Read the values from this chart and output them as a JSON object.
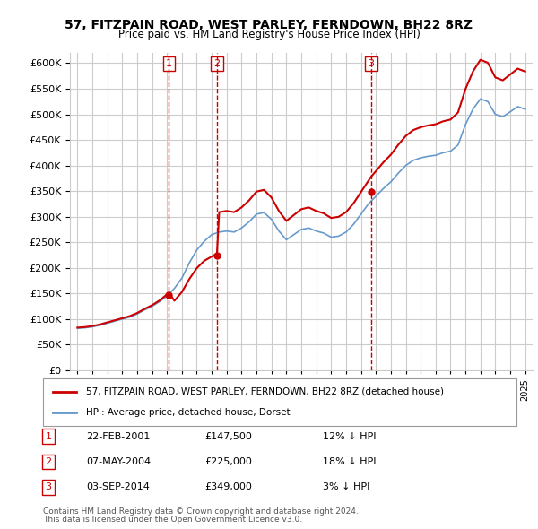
{
  "title": "57, FITZPAIN ROAD, WEST PARLEY, FERNDOWN, BH22 8RZ",
  "subtitle": "Price paid vs. HM Land Registry's House Price Index (HPI)",
  "legend_property": "57, FITZPAIN ROAD, WEST PARLEY, FERNDOWN, BH22 8RZ (detached house)",
  "legend_hpi": "HPI: Average price, detached house, Dorset",
  "footer1": "Contains HM Land Registry data © Crown copyright and database right 2024.",
  "footer2": "This data is licensed under the Open Government Licence v3.0.",
  "transactions": [
    {
      "num": 1,
      "date": "22-FEB-2001",
      "price": "£147,500",
      "diff": "12% ↓ HPI"
    },
    {
      "num": 2,
      "date": "07-MAY-2004",
      "price": "£225,000",
      "diff": "18% ↓ HPI"
    },
    {
      "num": 3,
      "date": "03-SEP-2014",
      "price": "£349,000",
      "diff": "3% ↓ HPI"
    }
  ],
  "property_color": "#cc0000",
  "hpi_color": "#6699cc",
  "marker_years": [
    2001.13,
    2004.35,
    2014.67
  ],
  "marker_values": [
    147500,
    225000,
    349000
  ],
  "ylim": [
    0,
    620000
  ],
  "yticks": [
    0,
    50000,
    100000,
    150000,
    200000,
    250000,
    300000,
    350000,
    400000,
    450000,
    500000,
    550000,
    600000
  ],
  "background_color": "#ffffff",
  "grid_color": "#cccccc"
}
